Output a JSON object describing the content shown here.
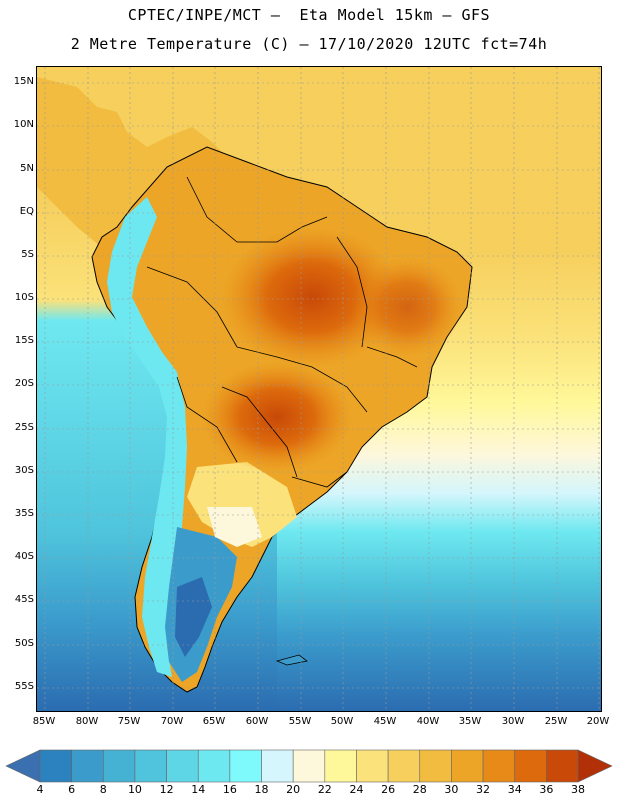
{
  "header": {
    "title_line1": "CPTEC/INPE/MCT –  Eta Model 15km – GFS",
    "title_line2": "2 Metre Temperature (C) – 17/10/2020 12UTC fct=74h"
  },
  "map": {
    "variable": "2 Metre Temperature",
    "units": "C",
    "lat_labels": [
      "15N",
      "10N",
      "5N",
      "EQ",
      "5S",
      "10S",
      "15S",
      "20S",
      "25S",
      "30S",
      "35S",
      "40S",
      "45S",
      "50S",
      "55S"
    ],
    "lon_labels": [
      "85W",
      "80W",
      "75W",
      "70W",
      "65W",
      "60W",
      "55W",
      "50W",
      "45W",
      "40W",
      "35W",
      "30W",
      "25W",
      "20W"
    ]
  },
  "colorbar": {
    "labels": [
      "4",
      "6",
      "8",
      "10",
      "12",
      "14",
      "16",
      "18",
      "20",
      "22",
      "24",
      "26",
      "28",
      "30",
      "32",
      "34",
      "36",
      "38"
    ],
    "colors": [
      "#3a6fb0",
      "#2b82bf",
      "#3b9ccc",
      "#45b2d4",
      "#4fc4dc",
      "#5fd6e6",
      "#6ee8f0",
      "#7ffafc",
      "#d4f6fc",
      "#fdf7dc",
      "#fff89a",
      "#fbe27a",
      "#f6cf5c",
      "#f1bc3f",
      "#eca526",
      "#e78a17",
      "#dd6a0c",
      "#c84908",
      "#b23008"
    ]
  }
}
